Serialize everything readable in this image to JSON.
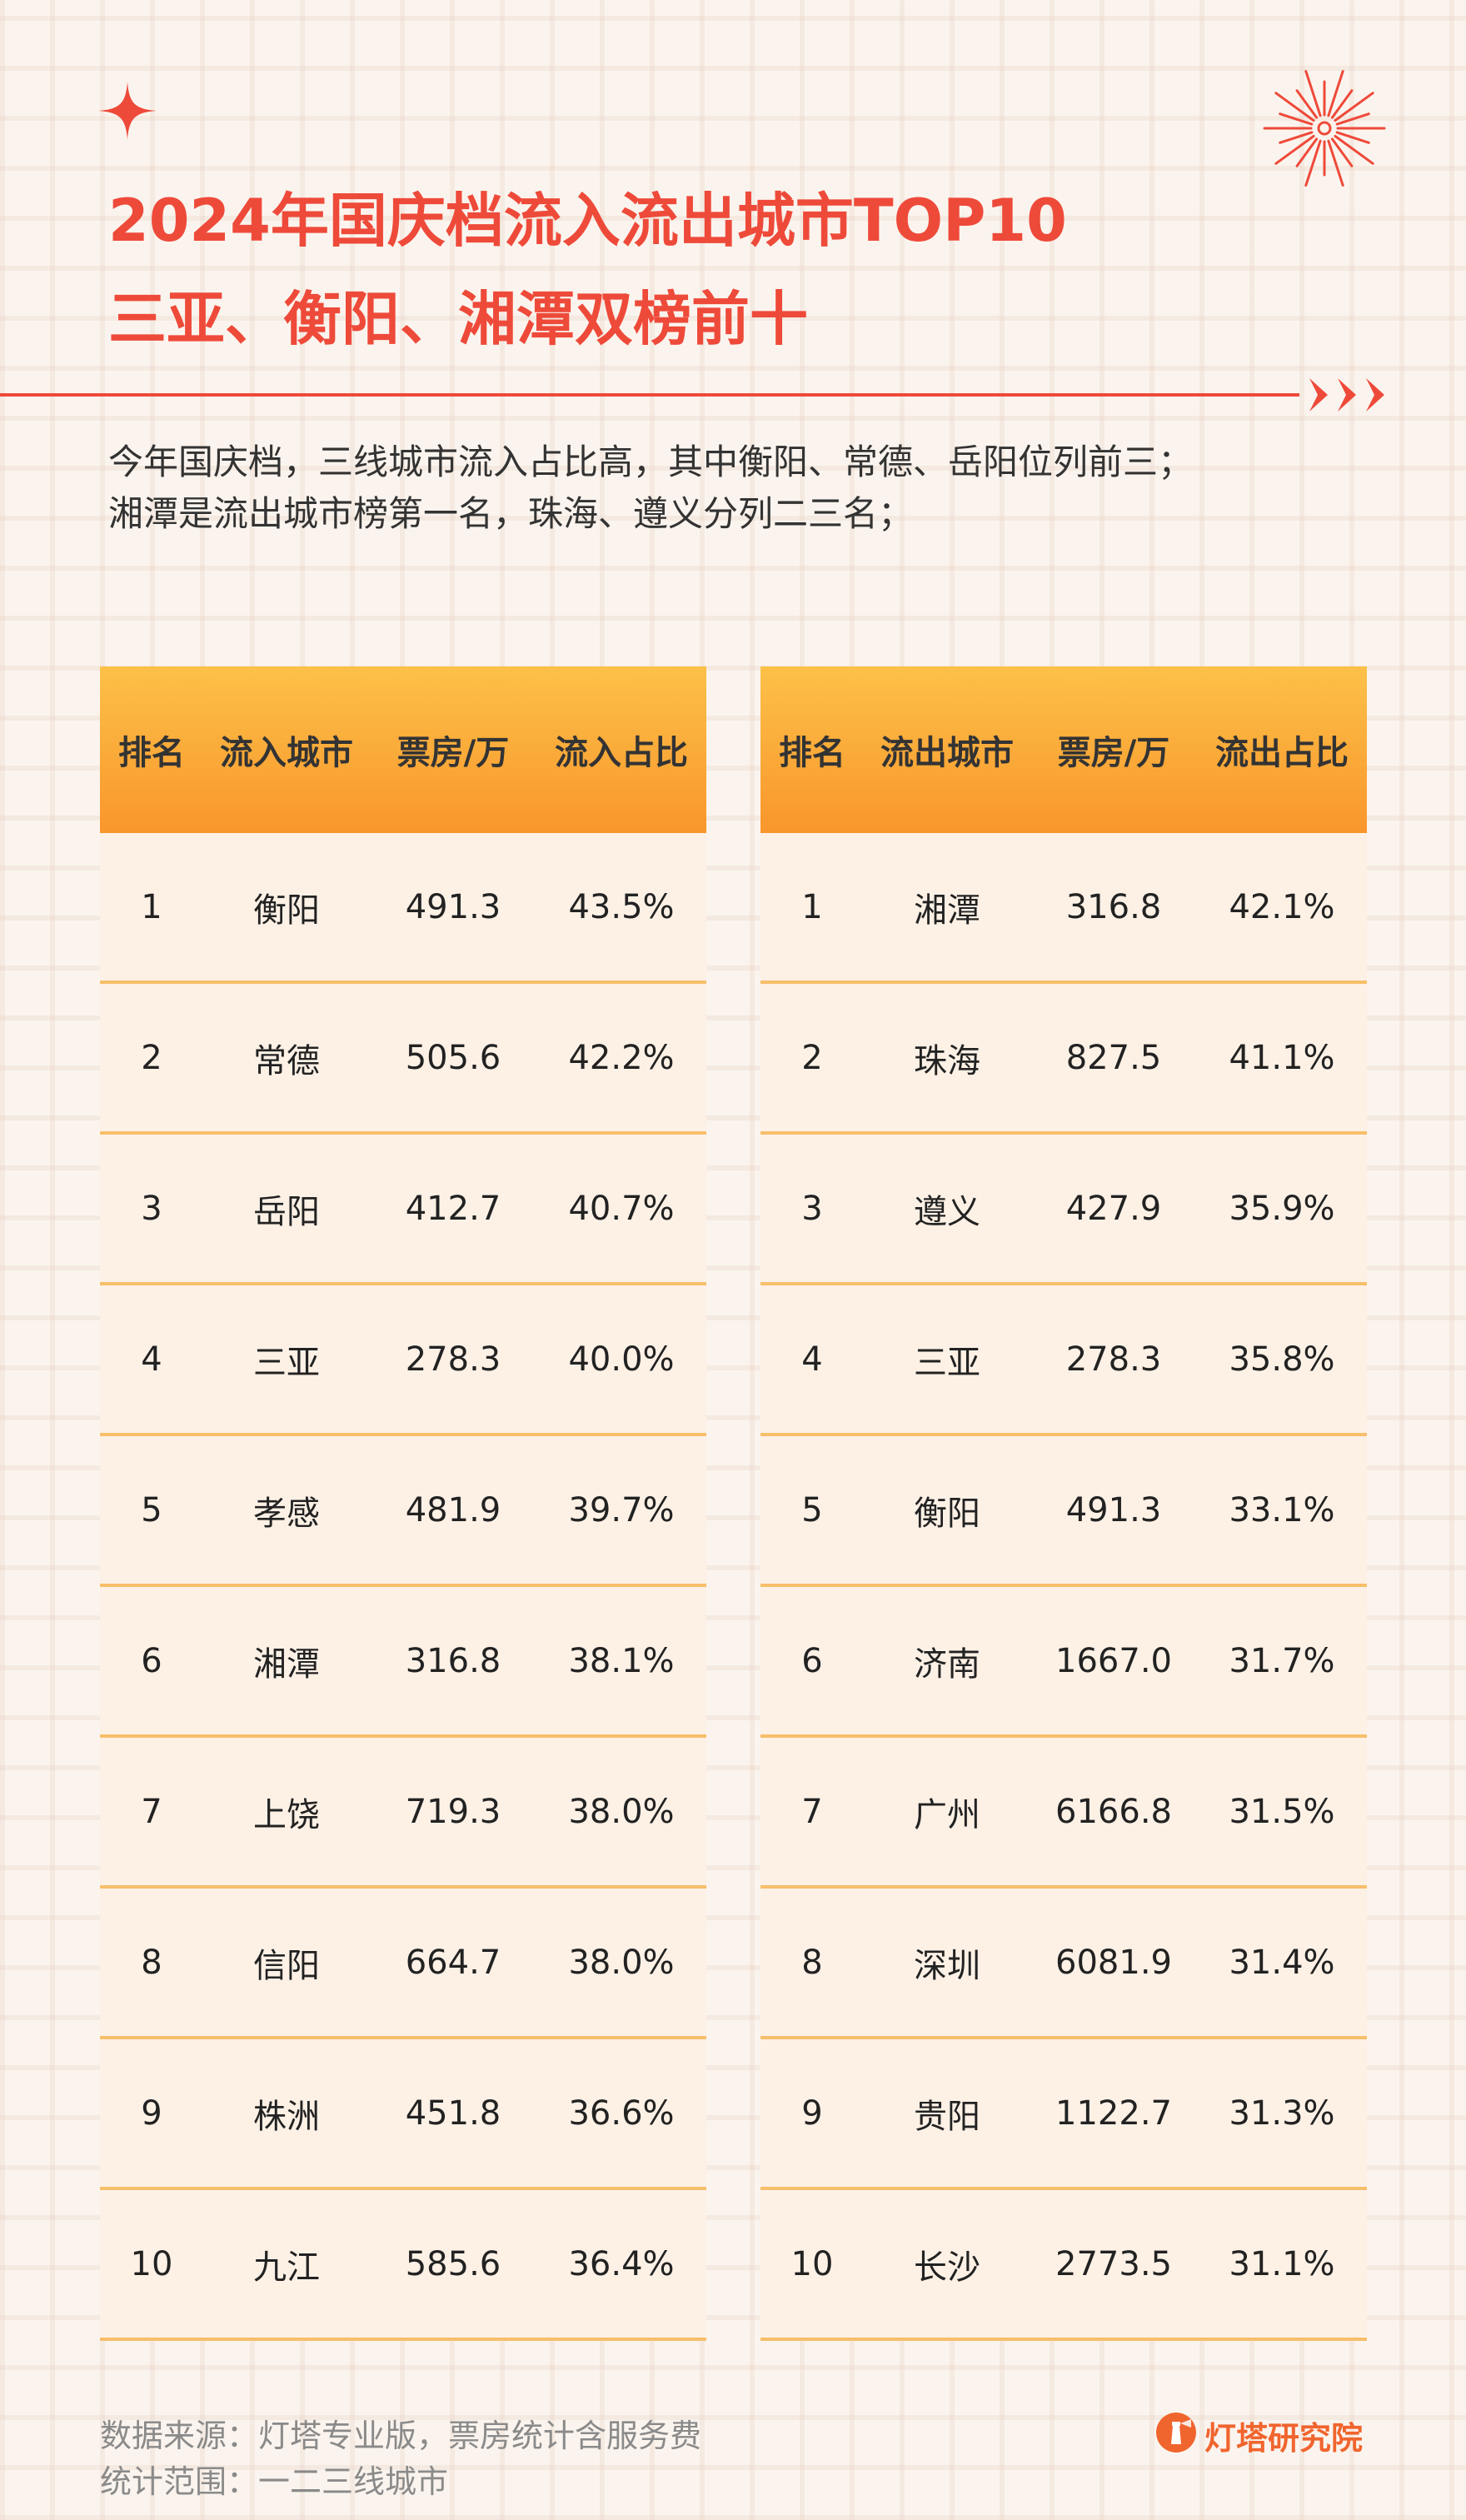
{
  "title": {
    "line1": "2024年国庆档流入流出城市TOP10",
    "line2": "三亚、衡阳、湘潭双榜前十"
  },
  "intro": {
    "line1": "今年国庆档，三线城市流入占比高，其中衡阳、常德、岳阳位列前三；",
    "line2": "湘潭是流出城市榜第一名，珠海、遵义分列二三名；"
  },
  "inflow": {
    "headers": [
      "排名",
      "流入城市",
      "票房/万",
      "流入占比"
    ],
    "rows": [
      {
        "rank": "1",
        "city": "衡阳",
        "box": "491.3",
        "share": "43.5%"
      },
      {
        "rank": "2",
        "city": "常德",
        "box": "505.6",
        "share": "42.2%"
      },
      {
        "rank": "3",
        "city": "岳阳",
        "box": "412.7",
        "share": "40.7%"
      },
      {
        "rank": "4",
        "city": "三亚",
        "box": "278.3",
        "share": "40.0%"
      },
      {
        "rank": "5",
        "city": "孝感",
        "box": "481.9",
        "share": "39.7%"
      },
      {
        "rank": "6",
        "city": "湘潭",
        "box": "316.8",
        "share": "38.1%"
      },
      {
        "rank": "7",
        "city": "上饶",
        "box": "719.3",
        "share": "38.0%"
      },
      {
        "rank": "8",
        "city": "信阳",
        "box": "664.7",
        "share": "38.0%"
      },
      {
        "rank": "9",
        "city": "株洲",
        "box": "451.8",
        "share": "36.6%"
      },
      {
        "rank": "10",
        "city": "九江",
        "box": "585.6",
        "share": "36.4%"
      }
    ]
  },
  "outflow": {
    "headers": [
      "排名",
      "流出城市",
      "票房/万",
      "流出占比"
    ],
    "rows": [
      {
        "rank": "1",
        "city": "湘潭",
        "box": "316.8",
        "share": "42.1%"
      },
      {
        "rank": "2",
        "city": "珠海",
        "box": "827.5",
        "share": "41.1%"
      },
      {
        "rank": "3",
        "city": "遵义",
        "box": "427.9",
        "share": "35.9%"
      },
      {
        "rank": "4",
        "city": "三亚",
        "box": "278.3",
        "share": "35.8%"
      },
      {
        "rank": "5",
        "city": "衡阳",
        "box": "491.3",
        "share": "33.1%"
      },
      {
        "rank": "6",
        "city": "济南",
        "box": "1667.0",
        "share": "31.7%"
      },
      {
        "rank": "7",
        "city": "广州",
        "box": "6166.8",
        "share": "31.5%"
      },
      {
        "rank": "8",
        "city": "深圳",
        "box": "6081.9",
        "share": "31.4%"
      },
      {
        "rank": "9",
        "city": "贵阳",
        "box": "1122.7",
        "share": "31.3%"
      },
      {
        "rank": "10",
        "city": "长沙",
        "box": "2773.5",
        "share": "31.1%"
      }
    ]
  },
  "footer": {
    "source": "数据来源：灯塔专业版，票房统计含服务费",
    "scope": "统计范围：一二三线城市",
    "brand": "灯塔研究院"
  },
  "icons": {
    "star": "sparkle-icon",
    "burst": "firework-icon",
    "arrows": "triple-arrow-icon",
    "logo": "lighthouse-logo-icon"
  },
  "colors": {
    "accent": "#ee4a3a",
    "header_top": "#fcc148",
    "header_bottom": "#f9962c",
    "row_line": "#f7bf6a",
    "table_bg": "#fdf1e6",
    "brand": "#f0652e"
  }
}
